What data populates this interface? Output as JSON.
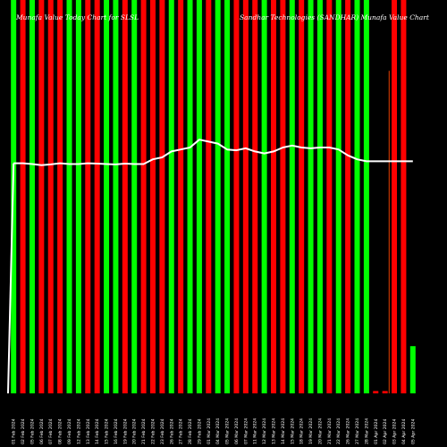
{
  "header": {
    "left_title": "Munafa Value Today Chart for SLSL",
    "right_title": "Sandhar Technologies (SANDHAR) Munafa Value Chart"
  },
  "colors": {
    "background": "#000000",
    "up_bar": "#00ff00",
    "down_bar": "#ff0000",
    "line": "#ffffff",
    "thin_bar": "#ff4500"
  },
  "chart_data": {
    "type": "bar",
    "y_range": [
      0,
      100
    ],
    "categories": [
      "01 Feb 2024",
      "02 Feb 2024",
      "05 Feb 2024",
      "06 Feb 2024",
      "07 Feb 2024",
      "08 Feb 2024",
      "09 Feb 2024",
      "12 Feb 2024",
      "13 Feb 2024",
      "14 Feb 2024",
      "15 Feb 2024",
      "16 Feb 2024",
      "19 Feb 2024",
      "20 Feb 2024",
      "21 Feb 2024",
      "22 Feb 2024",
      "23 Feb 2024",
      "26 Feb 2024",
      "27 Feb 2024",
      "28 Feb 2024",
      "29 Feb 2024",
      "01 Mar 2024",
      "04 Mar 2024",
      "05 Mar 2024",
      "06 Mar 2024",
      "07 Mar 2024",
      "11 Mar 2024",
      "12 Mar 2024",
      "13 Mar 2024",
      "14 Mar 2024",
      "15 Mar 2024",
      "18 Mar 2024",
      "19 Mar 2024",
      "20 Mar 2024",
      "21 Mar 2024",
      "22 Mar 2024",
      "26 Mar 2024",
      "27 Mar 2024",
      "28 Mar 2024",
      "01 Apr 2024",
      "02 Apr 2024",
      "03 Apr 2024",
      "04 Apr 2024",
      "05 Apr 2024"
    ],
    "directions": [
      "up",
      "down",
      "up",
      "down",
      "down",
      "down",
      "up",
      "up",
      "down",
      "down",
      "up",
      "up",
      "down",
      "up",
      "down",
      "down",
      "down",
      "up",
      "down",
      "up",
      "up",
      "down",
      "up",
      "up",
      "down",
      "down",
      "down",
      "up",
      "down",
      "down",
      "up",
      "down",
      "up",
      "up",
      "down",
      "up",
      "down",
      "up",
      "up",
      "down",
      "down",
      "down",
      "down",
      "up"
    ],
    "values": [
      100,
      100,
      100,
      100,
      100,
      100,
      100,
      100,
      100,
      100,
      100,
      100,
      100,
      100,
      100,
      100,
      100,
      100,
      100,
      100,
      100,
      100,
      100,
      100,
      100,
      100,
      100,
      100,
      100,
      100,
      100,
      100,
      100,
      100,
      100,
      100,
      100,
      100,
      100,
      0.6,
      0.6,
      100,
      100,
      12
    ],
    "line_values": [
      58.5,
      58.5,
      58.3,
      58.0,
      58.2,
      58.5,
      58.3,
      58.3,
      58.5,
      58.4,
      58.3,
      58.2,
      58.4,
      58.3,
      58.3,
      59.5,
      60.0,
      61.5,
      62.0,
      62.5,
      64.5,
      64.0,
      63.5,
      62.0,
      61.8,
      62.3,
      61.5,
      61.0,
      61.5,
      62.5,
      63.0,
      62.5,
      62.3,
      62.5,
      62.5,
      62.0,
      60.5,
      59.5,
      59.0,
      59.0,
      59.0,
      59.0,
      59.0,
      59.0
    ],
    "thin_bar": {
      "x_index": 40.9,
      "value": 82
    }
  }
}
